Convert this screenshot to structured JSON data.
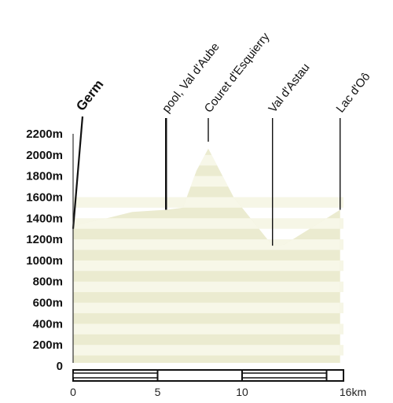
{
  "chart_data": {
    "type": "area",
    "title": "",
    "xlabel": "",
    "ylabel": "",
    "xlim": [
      0,
      16
    ],
    "ylim": [
      0,
      2200
    ],
    "yticks": [
      "0",
      "200m",
      "400m",
      "600m",
      "800m",
      "1000m",
      "1200m",
      "1400m",
      "1600m",
      "1800m",
      "2000m",
      "2200m"
    ],
    "xticks": [
      "0",
      "5",
      "10",
      "16km"
    ],
    "xtick_values": [
      0,
      5,
      10,
      16
    ],
    "profile": {
      "x": [
        0,
        0.5,
        2,
        3.5,
        5.5,
        6.5,
        7.3,
        8,
        9.5,
        11.8,
        12.5,
        14.5,
        15.8
      ],
      "y": [
        1300,
        1350,
        1400,
        1460,
        1480,
        1500,
        1850,
        2060,
        1600,
        1140,
        1150,
        1350,
        1480
      ]
    },
    "waypoints": [
      {
        "label": "Germ",
        "x": 0,
        "y": 1300,
        "bold": true
      },
      {
        "label": "pool, Val d'Aube",
        "x": 5.5,
        "y": 1480,
        "bold": false
      },
      {
        "label": "Couret d'Esquierry",
        "x": 8,
        "y": 2060,
        "bold": false
      },
      {
        "label": "Val d'Astau",
        "x": 11.8,
        "y": 1140,
        "bold": false
      },
      {
        "label": "Lac d'Oô",
        "x": 15.8,
        "y": 1480,
        "bold": false
      }
    ],
    "fill_color": "#e8e8c8",
    "stripe_color": "#f6f6e6",
    "line_color": "#111111",
    "grid": false,
    "legend": "none"
  }
}
